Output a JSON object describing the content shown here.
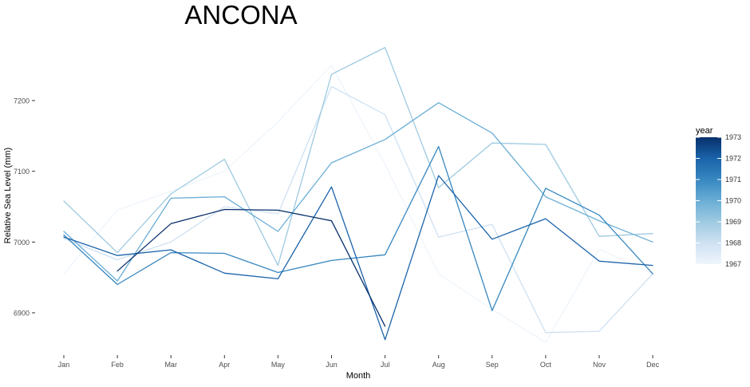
{
  "chart_data": {
    "type": "line",
    "title": "ANCONA",
    "xlabel": "Month",
    "ylabel": "Relative Sea Level (mm)",
    "categories": [
      "Jan",
      "Feb",
      "Mar",
      "Apr",
      "May",
      "Jun",
      "Jul",
      "Aug",
      "Sep",
      "Oct",
      "Nov",
      "Dec"
    ],
    "yticks": [
      6900,
      7000,
      7100,
      7200
    ],
    "ylim": [
      6840,
      7290
    ],
    "grid": false,
    "legend": {
      "title": "year",
      "position": "right",
      "type": "colorbar",
      "ticks": [
        1967,
        1968,
        1969,
        1970,
        1971,
        1972,
        1973
      ],
      "range": [
        1967,
        1973
      ],
      "low_color": "#f7fbff",
      "high_color": "#08306b"
    },
    "series": [
      {
        "year": 1967,
        "color": "#eef5fc",
        "values": [
          6955,
          7045,
          7072,
          7100,
          7170,
          7250,
          7110,
          6955,
          6905,
          6858,
          6990,
          6955
        ]
      },
      {
        "year": 1968,
        "color": "#cfe1f2",
        "values": [
          7005,
          6975,
          7000,
          7050,
          7040,
          7220,
          7180,
          7007,
          7025,
          6872,
          6874,
          6955
        ]
      },
      {
        "year": 1969,
        "color": "#9ecae1",
        "values": [
          7058,
          6985,
          7068,
          7117,
          6967,
          7237,
          7275,
          7077,
          7140,
          7138,
          7008,
          7012
        ]
      },
      {
        "year": 1970,
        "color": "#6aaed6",
        "values": [
          7015,
          6945,
          7062,
          7064,
          7015,
          7112,
          7145,
          7197,
          7154,
          7064,
          7030,
          7000
        ]
      },
      {
        "year": 1971,
        "color": "#3787c0",
        "values": [
          7010,
          6940,
          6985,
          6984,
          6957,
          6974,
          6982,
          7135,
          6903,
          7076,
          7038,
          6955
        ]
      },
      {
        "year": 1972,
        "color": "#1a63aa",
        "values": [
          7007,
          6981,
          6989,
          6956,
          6948,
          7078,
          6862,
          7094,
          7004,
          7033,
          6973,
          6967
        ]
      },
      {
        "year": 1973,
        "color": "#08306b",
        "values": [
          null,
          6959,
          7026,
          7046,
          7045,
          7030,
          6881,
          null,
          null,
          null,
          null,
          null
        ]
      }
    ]
  }
}
